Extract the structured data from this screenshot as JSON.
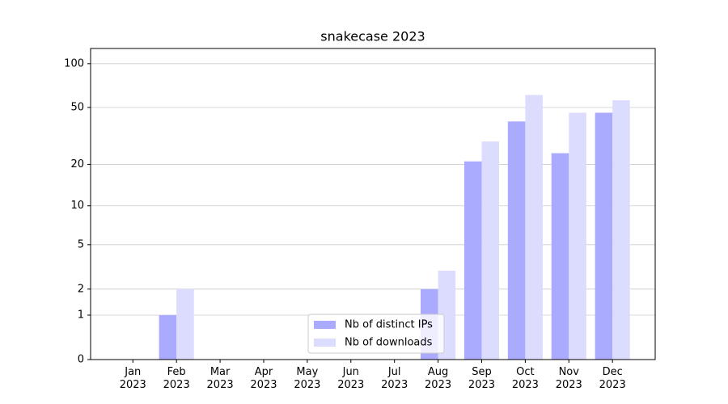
{
  "chart_data": {
    "type": "bar",
    "title": "snakecase 2023",
    "categories": [
      "Jan\n2023",
      "Feb\n2023",
      "Mar\n2023",
      "Apr\n2023",
      "May\n2023",
      "Jun\n2023",
      "Jul\n2023",
      "Aug\n2023",
      "Sep\n2023",
      "Oct\n2023",
      "Nov\n2023",
      "Dec\n2023"
    ],
    "series": [
      {
        "name": "Nb of distinct IPs",
        "color": "#aaaaff",
        "values": [
          0,
          1,
          0,
          0,
          0,
          0,
          0,
          2,
          21,
          40,
          24,
          46
        ]
      },
      {
        "name": "Nb of downloads",
        "color": "#dcdcff",
        "values": [
          0,
          2,
          0,
          0,
          0,
          0,
          0,
          3,
          29,
          61,
          46,
          56
        ]
      }
    ],
    "yscale": "log1p",
    "ylim": [
      0,
      127
    ],
    "yticks": [
      0,
      1,
      2,
      5,
      10,
      20,
      50,
      100
    ],
    "grid": true,
    "legend": "lower center"
  }
}
